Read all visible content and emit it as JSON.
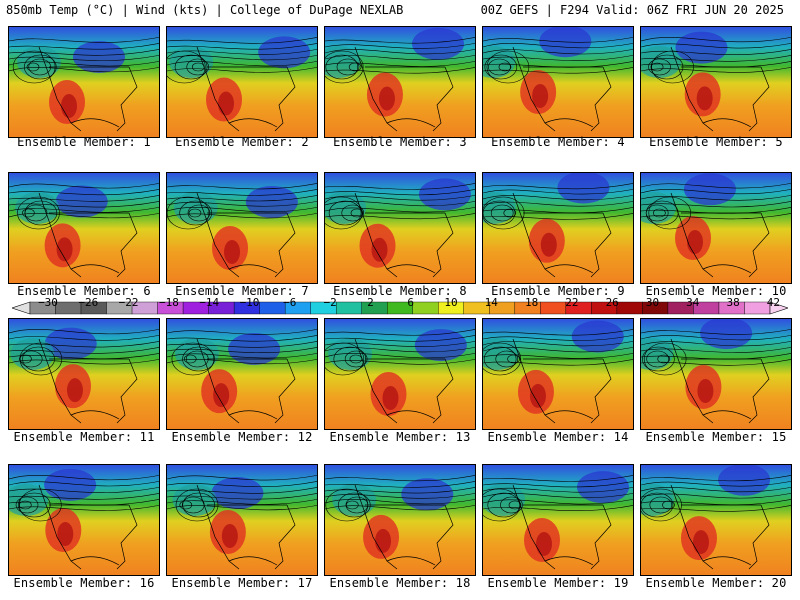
{
  "header": {
    "left": "850mb Temp (°C) | Wind (kts) | College of DuPage NEXLAB",
    "right": "00Z GEFS | F294 Valid: 06Z FRI JUN 20 2025"
  },
  "panel_label_prefix": "Ensemble Member: ",
  "members": [
    "1",
    "2",
    "3",
    "4",
    "5",
    "6",
    "7",
    "8",
    "9",
    "10",
    "11",
    "12",
    "13",
    "14",
    "15",
    "16",
    "17",
    "18",
    "19",
    "20"
  ],
  "colorbar": {
    "labels": [
      "−30",
      "−26",
      "−22",
      "−18",
      "−14",
      "−10",
      "−6",
      "−2",
      "2",
      "6",
      "10",
      "14",
      "18",
      "22",
      "26",
      "30",
      "34",
      "38",
      "42"
    ],
    "colors": [
      "#8c8c8c",
      "#6e6e6e",
      "#5a5a5a",
      "#a8a8a8",
      "#cfa0d8",
      "#c850d8",
      "#a020e0",
      "#7820d8",
      "#3030e0",
      "#1e60e8",
      "#20a0f0",
      "#20d0e0",
      "#20c0a0",
      "#20a050",
      "#40b820",
      "#90d020",
      "#f0f020",
      "#f0c020",
      "#f0a020",
      "#f08020",
      "#f05020",
      "#e02020",
      "#c01010",
      "#a00808",
      "#800808",
      "#a02060",
      "#c040a0",
      "#e070c8",
      "#f0a0e0"
    ]
  },
  "colors": {
    "land_warm": "#f0a020",
    "heat_core": "#e02020",
    "cool_north": "#2040d8",
    "mid": "#20b070",
    "ocean": "#f0d020"
  }
}
